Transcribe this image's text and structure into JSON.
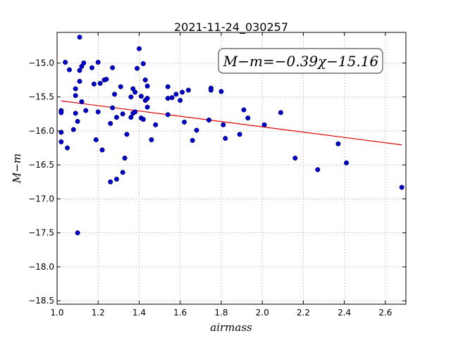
{
  "chart_data": {
    "type": "scatter",
    "title": "2021-11-24_030257",
    "xlabel": "airmass",
    "ylabel": "M−m",
    "xlim": [
      1.0,
      2.7
    ],
    "ylim": [
      -18.55,
      -14.55
    ],
    "x_ticks": [
      1.0,
      1.2,
      1.4,
      1.6,
      1.8,
      2.0,
      2.2,
      2.4,
      2.6
    ],
    "x_tick_labels": [
      "1.0",
      "1.2",
      "1.4",
      "1.6",
      "1.8",
      "2.0",
      "2.2",
      "2.4",
      "2.6"
    ],
    "y_ticks": [
      -15.0,
      -15.5,
      -16.0,
      -16.5,
      -17.0,
      -17.5,
      -18.0,
      -18.5
    ],
    "y_tick_labels": [
      "−15.0",
      "−15.5",
      "−16.0",
      "−16.5",
      "−17.0",
      "−17.5",
      "−18.0",
      "−18.5"
    ],
    "grid": true,
    "annotation": "M−m=−0.39χ−15.16",
    "colors": {
      "points": "#0000cc",
      "fit": "#dd0000",
      "grid": "#999999"
    },
    "fit_line": {
      "slope": -0.39,
      "intercept": -15.16,
      "x_range": [
        1.02,
        2.68
      ]
    },
    "points": [
      [
        1.02,
        -15.7
      ],
      [
        1.02,
        -15.73
      ],
      [
        1.02,
        -16.02
      ],
      [
        1.02,
        -16.16
      ],
      [
        1.04,
        -14.99
      ],
      [
        1.05,
        -16.25
      ],
      [
        1.06,
        -15.1
      ],
      [
        1.08,
        -15.98
      ],
      [
        1.09,
        -15.38
      ],
      [
        1.09,
        -15.48
      ],
      [
        1.09,
        -15.74
      ],
      [
        1.1,
        -15.86
      ],
      [
        1.1,
        -17.5
      ],
      [
        1.11,
        -14.62
      ],
      [
        1.11,
        -15.11
      ],
      [
        1.11,
        -15.27
      ],
      [
        1.12,
        -15.05
      ],
      [
        1.12,
        -15.57
      ],
      [
        1.13,
        -15.0
      ],
      [
        1.14,
        -15.7
      ],
      [
        1.17,
        -15.07
      ],
      [
        1.18,
        -15.31
      ],
      [
        1.19,
        -16.13
      ],
      [
        1.2,
        -14.99
      ],
      [
        1.2,
        -15.72
      ],
      [
        1.21,
        -15.3
      ],
      [
        1.22,
        -16.28
      ],
      [
        1.23,
        -15.25
      ],
      [
        1.24,
        -15.24
      ],
      [
        1.26,
        -15.89
      ],
      [
        1.26,
        -16.75
      ],
      [
        1.27,
        -15.07
      ],
      [
        1.27,
        -15.66
      ],
      [
        1.28,
        -15.46
      ],
      [
        1.29,
        -15.8
      ],
      [
        1.29,
        -16.71
      ],
      [
        1.31,
        -15.35
      ],
      [
        1.32,
        -15.75
      ],
      [
        1.32,
        -16.61
      ],
      [
        1.33,
        -16.4
      ],
      [
        1.34,
        -16.05
      ],
      [
        1.36,
        -15.5
      ],
      [
        1.36,
        -15.8
      ],
      [
        1.37,
        -15.38
      ],
      [
        1.37,
        -15.74
      ],
      [
        1.38,
        -15.43
      ],
      [
        1.38,
        -15.72
      ],
      [
        1.39,
        -15.08
      ],
      [
        1.4,
        -14.79
      ],
      [
        1.41,
        -15.49
      ],
      [
        1.41,
        -15.81
      ],
      [
        1.42,
        -15.83
      ],
      [
        1.42,
        -15.01
      ],
      [
        1.43,
        -15.25
      ],
      [
        1.43,
        -15.55
      ],
      [
        1.44,
        -15.34
      ],
      [
        1.44,
        -15.52
      ],
      [
        1.44,
        -15.65
      ],
      [
        1.46,
        -16.13
      ],
      [
        1.48,
        -15.91
      ],
      [
        1.54,
        -15.35
      ],
      [
        1.54,
        -15.52
      ],
      [
        1.54,
        -15.76
      ],
      [
        1.56,
        -15.51
      ],
      [
        1.58,
        -15.46
      ],
      [
        1.6,
        -15.55
      ],
      [
        1.61,
        -15.43
      ],
      [
        1.62,
        -15.87
      ],
      [
        1.64,
        -15.4
      ],
      [
        1.66,
        -16.14
      ],
      [
        1.68,
        -15.99
      ],
      [
        1.74,
        -15.84
      ],
      [
        1.75,
        -15.37
      ],
      [
        1.75,
        -15.4
      ],
      [
        1.8,
        -15.42
      ],
      [
        1.81,
        -15.91
      ],
      [
        1.82,
        -16.11
      ],
      [
        1.89,
        -16.05
      ],
      [
        1.91,
        -15.69
      ],
      [
        1.93,
        -15.81
      ],
      [
        2.01,
        -15.91
      ],
      [
        2.09,
        -15.73
      ],
      [
        2.16,
        -16.4
      ],
      [
        2.27,
        -16.57
      ],
      [
        2.37,
        -16.19
      ],
      [
        2.41,
        -16.47
      ],
      [
        2.68,
        -16.83
      ]
    ]
  }
}
